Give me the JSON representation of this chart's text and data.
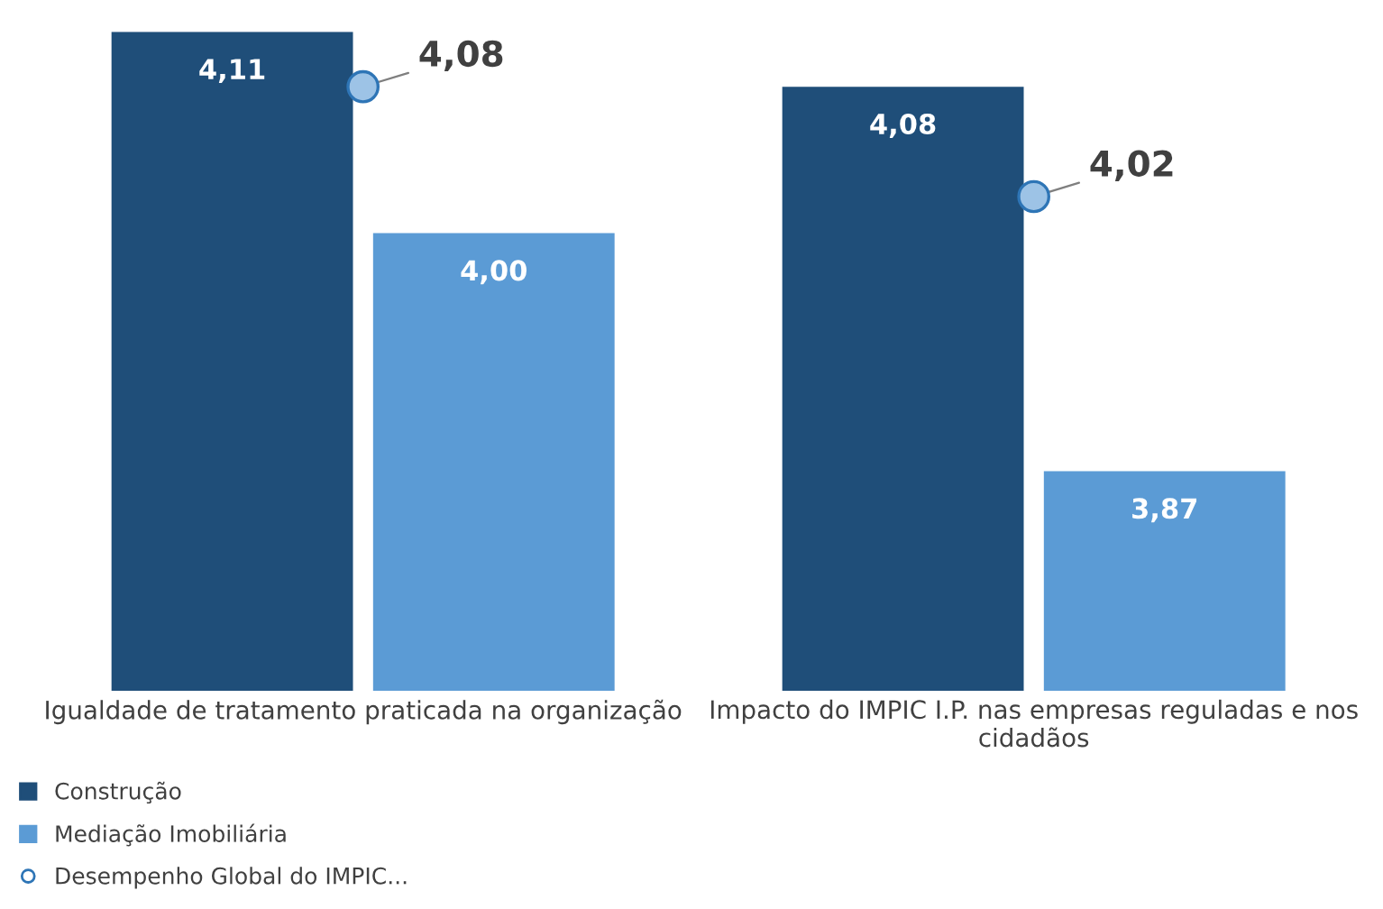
{
  "chart_data": {
    "type": "bar",
    "categories": [
      "Igualdade de tratamento praticada na organização",
      "Impacto do IMPIC I.P. nas empresas reguladas e nos cidadãos"
    ],
    "series": [
      {
        "name": "Construção",
        "color": "#1f4e79",
        "values": [
          4.11,
          4.08
        ],
        "value_labels": [
          "4,11",
          "4,08"
        ]
      },
      {
        "name": "Mediação Imobiliária",
        "color": "#5b9bd5",
        "values": [
          4.0,
          3.87
        ],
        "value_labels": [
          "4,00",
          "3,87"
        ]
      },
      {
        "name": "Desempenho Global do IMPIC...",
        "type": "scatter",
        "color": "#9dc3e6",
        "x": [
          "Igualdade de tratamento praticada na organização",
          "Impacto do IMPIC I.P. nas empresas reguladas e nos cidadãos"
        ],
        "values": [
          4.08,
          4.02
        ],
        "value_labels": [
          "4,08",
          "4,02"
        ]
      }
    ],
    "ylim": [
      3.75,
      4.11
    ],
    "legend": "bottom left",
    "grid": false,
    "tick_labels": "x",
    "marker": "circle"
  }
}
